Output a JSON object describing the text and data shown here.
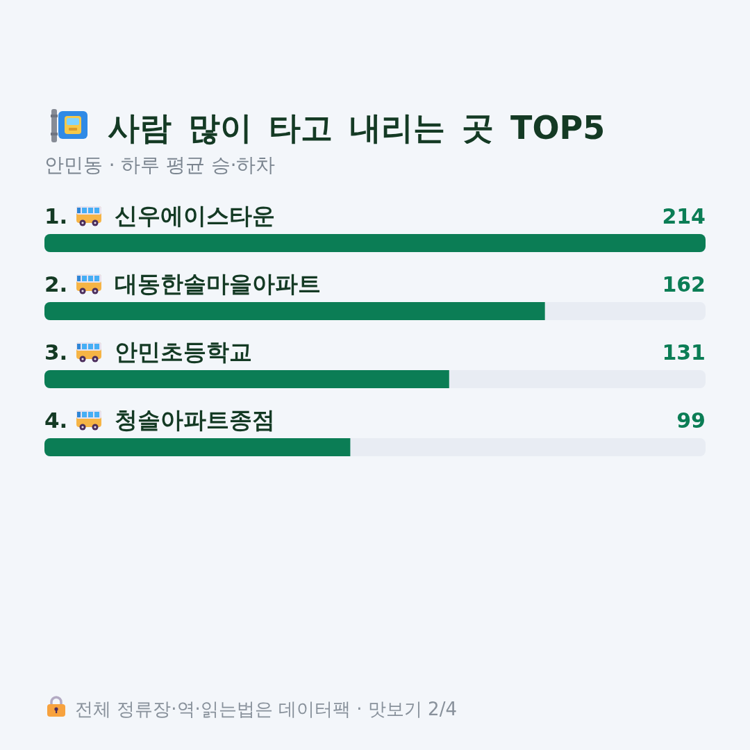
{
  "chart_data": {
    "type": "bar",
    "orientation": "horizontal",
    "title": "사람 많이 타고 내리는 곳 TOP5",
    "subtitle": "안민동 · 하루 평균 승·하차",
    "categories": [
      "1. 신우에이스타운",
      "2. 대동한솔마을아파트",
      "3. 안민초등학교",
      "4. 청솔아파트종점"
    ],
    "values": [
      214,
      162,
      131,
      99
    ],
    "color": "#0b7d55",
    "data_labels": true,
    "annotations": [
      "전체 정류장·역·읽는법은 데이터팩 · 맛보기 2/4"
    ]
  }
}
